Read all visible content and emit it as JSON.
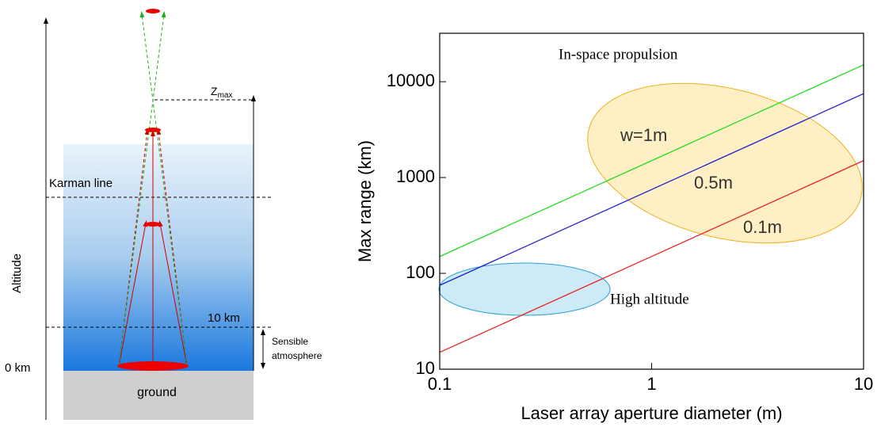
{
  "diagram": {
    "zmax": {
      "main": "Z",
      "sub": "max"
    },
    "karman": "Karman line",
    "altitude": "Altitude",
    "ten_km": "10 km",
    "zero_km": "0 km",
    "ground": "ground",
    "sensible": [
      "Sensible",
      "atmosphere"
    ]
  },
  "chart_data": {
    "type": "line",
    "xlabel": "Laser array aperture diameter (m)",
    "ylabel": "Max range (km)",
    "xscale": "log",
    "yscale": "log",
    "xlim": [
      0.1,
      10
    ],
    "ylim": [
      10,
      32000
    ],
    "xticks": [
      0.1,
      1,
      10
    ],
    "yticks": [
      10,
      100,
      1000,
      10000
    ],
    "x": [
      0.1,
      10
    ],
    "series": [
      {
        "name": "w=1m",
        "color": "#22dd22",
        "values": [
          150,
          15000
        ]
      },
      {
        "name": "0.5m",
        "color": "#2222cc",
        "values": [
          75,
          7500
        ]
      },
      {
        "name": "0.1m",
        "color": "#ee2222",
        "values": [
          15,
          1500
        ]
      }
    ],
    "annotations": [
      "In-space propulsion",
      "High altitude"
    ]
  }
}
